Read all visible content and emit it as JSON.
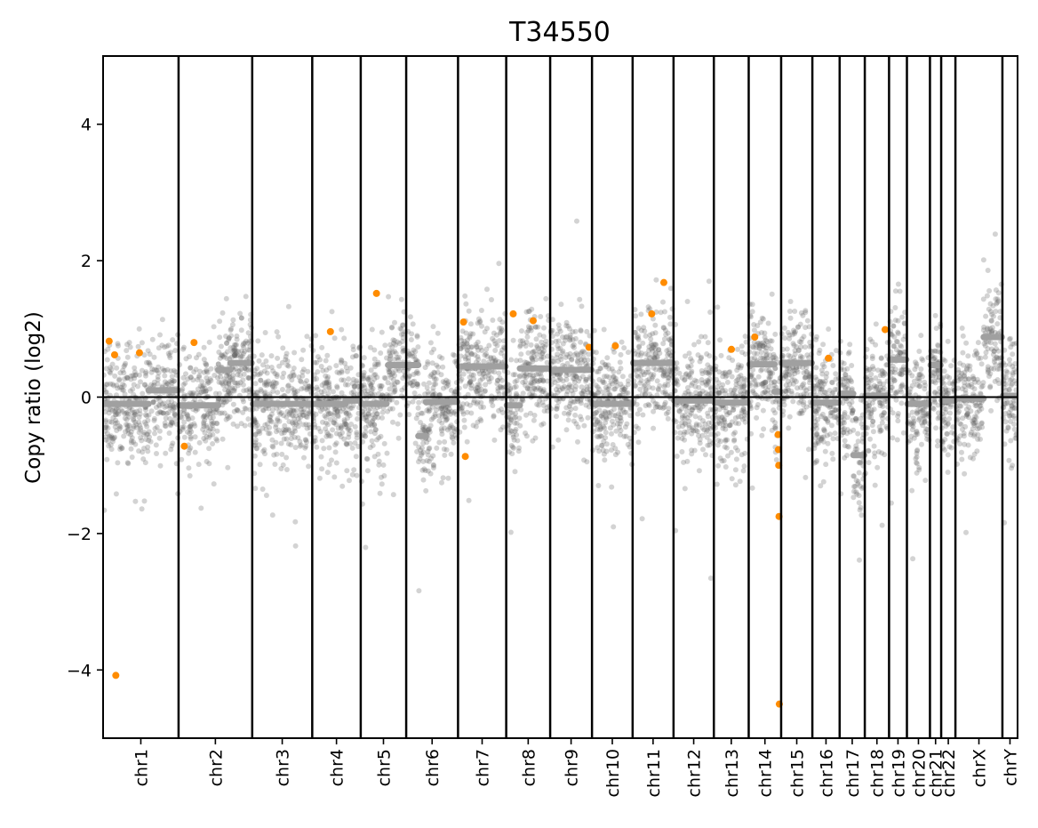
{
  "chart_data": {
    "type": "scatter",
    "title": "T34550",
    "xlabel": "",
    "ylabel": "Copy ratio (log2)",
    "ylim": [
      -5,
      5
    ],
    "yticks": [
      -4,
      -2,
      0,
      2,
      4
    ],
    "ytick_labels": [
      "−4",
      "−2",
      "0",
      "2",
      "4"
    ],
    "baseline": 0,
    "colors": {
      "bins": "#606060",
      "segments": "#a0a0a0",
      "highlight": "#ff8c00",
      "frame": "#000000"
    },
    "chromosomes": [
      {
        "name": "chr1",
        "start": 0,
        "end": 249
      },
      {
        "name": "chr2",
        "start": 249,
        "end": 492
      },
      {
        "name": "chr3",
        "start": 492,
        "end": 690
      },
      {
        "name": "chr4",
        "start": 690,
        "end": 850
      },
      {
        "name": "chr5",
        "start": 850,
        "end": 1000
      },
      {
        "name": "chr6",
        "start": 1000,
        "end": 1171
      },
      {
        "name": "chr7",
        "start": 1171,
        "end": 1330
      },
      {
        "name": "chr8",
        "start": 1330,
        "end": 1475
      },
      {
        "name": "chr9",
        "start": 1475,
        "end": 1613
      },
      {
        "name": "chr10",
        "start": 1613,
        "end": 1747
      },
      {
        "name": "chr11",
        "start": 1747,
        "end": 1882
      },
      {
        "name": "chr12",
        "start": 1882,
        "end": 2015
      },
      {
        "name": "chr13",
        "start": 2015,
        "end": 2130
      },
      {
        "name": "chr14",
        "start": 2130,
        "end": 2237
      },
      {
        "name": "chr15",
        "start": 2237,
        "end": 2340
      },
      {
        "name": "chr16",
        "start": 2340,
        "end": 2430
      },
      {
        "name": "chr17",
        "start": 2430,
        "end": 2513
      },
      {
        "name": "chr18",
        "start": 2513,
        "end": 2593
      },
      {
        "name": "chr19",
        "start": 2593,
        "end": 2652
      },
      {
        "name": "chr20",
        "start": 2652,
        "end": 2728
      },
      {
        "name": "chr21",
        "start": 2728,
        "end": 2765
      },
      {
        "name": "chr22",
        "start": 2765,
        "end": 2812
      },
      {
        "name": "chrX",
        "start": 2812,
        "end": 2967
      },
      {
        "name": "chrY",
        "start": 2967,
        "end": 3017
      }
    ],
    "series": [
      {
        "name": "segments",
        "color": "#a0a0a0",
        "values": [
          {
            "x0": 2,
            "x1": 150,
            "y": -0.1
          },
          {
            "x0": 150,
            "x1": 247,
            "y": 0.1
          },
          {
            "x0": 251,
            "x1": 380,
            "y": -0.12
          },
          {
            "x0": 380,
            "x1": 420,
            "y": 0.4
          },
          {
            "x0": 420,
            "x1": 490,
            "y": 0.5
          },
          {
            "x0": 494,
            "x1": 688,
            "y": -0.1
          },
          {
            "x0": 692,
            "x1": 800,
            "y": -0.1
          },
          {
            "x0": 800,
            "x1": 848,
            "y": -0.05
          },
          {
            "x0": 852,
            "x1": 935,
            "y": -0.1
          },
          {
            "x0": 940,
            "x1": 998,
            "y": 0.47
          },
          {
            "x0": 1002,
            "x1": 1040,
            "y": 0.47
          },
          {
            "x0": 1040,
            "x1": 1065,
            "y": -0.57
          },
          {
            "x0": 1065,
            "x1": 1169,
            "y": -0.07
          },
          {
            "x0": 1173,
            "x1": 1328,
            "y": 0.45
          },
          {
            "x0": 1332,
            "x1": 1375,
            "y": -0.12
          },
          {
            "x0": 1375,
            "x1": 1473,
            "y": 0.42
          },
          {
            "x0": 1477,
            "x1": 1611,
            "y": 0.4
          },
          {
            "x0": 1615,
            "x1": 1745,
            "y": -0.1
          },
          {
            "x0": 1749,
            "x1": 1880,
            "y": 0.5
          },
          {
            "x0": 1884,
            "x1": 2013,
            "y": -0.05
          },
          {
            "x0": 2017,
            "x1": 2128,
            "y": -0.08
          },
          {
            "x0": 2132,
            "x1": 2215,
            "y": 0.48
          },
          {
            "x0": 2215,
            "x1": 2235,
            "y": 0.08
          },
          {
            "x0": 2239,
            "x1": 2338,
            "y": 0.5
          },
          {
            "x0": 2342,
            "x1": 2428,
            "y": -0.08
          },
          {
            "x0": 2432,
            "x1": 2475,
            "y": 0.05
          },
          {
            "x0": 2475,
            "x1": 2511,
            "y": -0.85
          },
          {
            "x0": 2515,
            "x1": 2591,
            "y": 0.02
          },
          {
            "x0": 2595,
            "x1": 2650,
            "y": 0.55
          },
          {
            "x0": 2654,
            "x1": 2726,
            "y": -0.1
          },
          {
            "x0": 2730,
            "x1": 2763,
            "y": 0.47
          },
          {
            "x0": 2767,
            "x1": 2810,
            "y": -0.05
          },
          {
            "x0": 2814,
            "x1": 2905,
            "y": -0.02
          },
          {
            "x0": 2905,
            "x1": 2965,
            "y": 0.88
          },
          {
            "x0": 2969,
            "x1": 3015,
            "y": 0.02
          }
        ]
      },
      {
        "name": "highlighted-bins",
        "color": "#ff8c00",
        "values": [
          {
            "x": 20,
            "y": 0.82
          },
          {
            "x": 38,
            "y": 0.62
          },
          {
            "x": 120,
            "y": 0.65
          },
          {
            "x": 42,
            "y": -4.08
          },
          {
            "x": 300,
            "y": 0.8
          },
          {
            "x": 268,
            "y": -0.72
          },
          {
            "x": 750,
            "y": 0.96
          },
          {
            "x": 902,
            "y": 1.52
          },
          {
            "x": 1189,
            "y": 1.1
          },
          {
            "x": 1195,
            "y": -0.87
          },
          {
            "x": 1353,
            "y": 1.22
          },
          {
            "x": 1419,
            "y": 1.12
          },
          {
            "x": 1603,
            "y": 0.73
          },
          {
            "x": 1690,
            "y": 0.75
          },
          {
            "x": 1810,
            "y": 1.22
          },
          {
            "x": 1850,
            "y": 1.68
          },
          {
            "x": 2073,
            "y": 0.7
          },
          {
            "x": 2150,
            "y": 0.88
          },
          {
            "x": 2227,
            "y": -0.55
          },
          {
            "x": 2228,
            "y": -0.77
          },
          {
            "x": 2229,
            "y": -1.0
          },
          {
            "x": 2230,
            "y": -1.75
          },
          {
            "x": 2231,
            "y": -4.5
          },
          {
            "x": 2393,
            "y": 0.57
          },
          {
            "x": 2580,
            "y": 0.99
          }
        ]
      }
    ]
  }
}
